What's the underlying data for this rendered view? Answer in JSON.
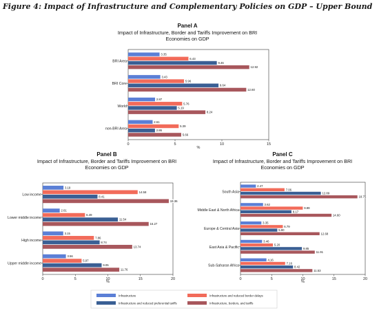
{
  "figure_title": "Figure 4: Impact of Infrastructure and Complementary Policies on GDP – Upper Bound",
  "colors": {
    "infrastructure": "#5b7fd6",
    "infra_border": "#f26b5a",
    "infra_tariffs": "#3a5f94",
    "infra_all": "#a8575c"
  },
  "legend": [
    {
      "name": "Infrastructure",
      "color": "#5b7fd6"
    },
    {
      "name": "Infrastructure and reduced border delays",
      "color": "#f26b5a"
    },
    {
      "name": "Infrastructure and reduced preferential tariffs",
      "color": "#3a5f94"
    },
    {
      "name": "Infrastructure, borders, and tariffs",
      "color": "#a8575c"
    }
  ],
  "chart_data": [
    {
      "type": "bar",
      "orientation": "horizontal",
      "panel": "Panel A",
      "title": "Impact of Infrastructure, Border and Tariffs Improvement on BRI",
      "title_line2": "Economies on GDP",
      "xlabel": "%",
      "xlim": [
        0,
        15
      ],
      "xticks": [
        0,
        5,
        10,
        15
      ],
      "categories": [
        "BRI Area",
        "BRI Core",
        "World",
        "non-BRI Area"
      ],
      "series": [
        {
          "name": "Infrastructure",
          "values": [
            3.35,
            3.43,
            2.87,
            2.61
          ]
        },
        {
          "name": "Infrastructure and reduced border delays",
          "values": [
            6.43,
            5.96,
            5.76,
            5.39
          ]
        },
        {
          "name": "Infrastructure and reduced preferential tariffs",
          "values": [
            9.46,
            9.64,
            5.19,
            2.86
          ]
        },
        {
          "name": "Infrastructure, borders, and tariffs",
          "values": [
            12.92,
            12.6,
            8.24,
            5.66
          ]
        }
      ]
    },
    {
      "type": "bar",
      "orientation": "horizontal",
      "panel": "Panel B",
      "title": "Impact of Infrastructure, Border and Tariffs Improvement on BRI",
      "title_line2": "Economies on GDP",
      "xlabel": "%",
      "xlim": [
        0,
        20
      ],
      "xticks": [
        0,
        5,
        10,
        15,
        20
      ],
      "categories": [
        "Low income",
        "Lower middle income",
        "High income",
        "Upper middle income"
      ],
      "series": [
        {
          "name": "Infrastructure",
          "values": [
            3.19,
            2.61,
            3.15,
            3.56
          ]
        },
        {
          "name": "Infrastructure and reduced border delays",
          "values": [
            14.58,
            6.49,
            7.86,
            5.97
          ]
        },
        {
          "name": "Infrastructure and reduced preferential tariffs",
          "values": [
            8.41,
            11.54,
            8.74,
            9.05
          ]
        },
        {
          "name": "Infrastructure, borders, and tariffs",
          "values": [
            19.36,
            16.27,
            13.74,
            11.76
          ]
        }
      ]
    },
    {
      "type": "bar",
      "orientation": "horizontal",
      "panel": "Panel C",
      "title": "Impact of Infrastructure, Border and Tariffs Improvement on BRI",
      "title_line2": "Economies on GDP",
      "xlabel": "%",
      "xlim": [
        0,
        20
      ],
      "xticks": [
        0,
        5,
        10,
        15,
        20
      ],
      "categories": [
        "South Asia",
        "Middle East & North Africa",
        "Europe & Central Asia",
        "East Asia & Pacific",
        "Sub-Saharan Africa"
      ],
      "series": [
        {
          "name": "Infrastructure",
          "values": [
            2.47,
            3.62,
            3.35,
            3.46,
            4.16
          ]
        },
        {
          "name": "Infrastructure and reduced border delays",
          "values": [
            7.06,
            9.99,
            6.79,
            5.2,
            7.16
          ]
        },
        {
          "name": "Infrastructure and reduced preferential tariffs",
          "values": [
            12.89,
            8.17,
            5.9,
            9.85,
            8.42
          ]
        },
        {
          "name": "Infrastructure, borders, and tariffs",
          "values": [
            18.75,
            14.6,
            12.68,
            11.91,
            11.53
          ]
        }
      ]
    }
  ]
}
